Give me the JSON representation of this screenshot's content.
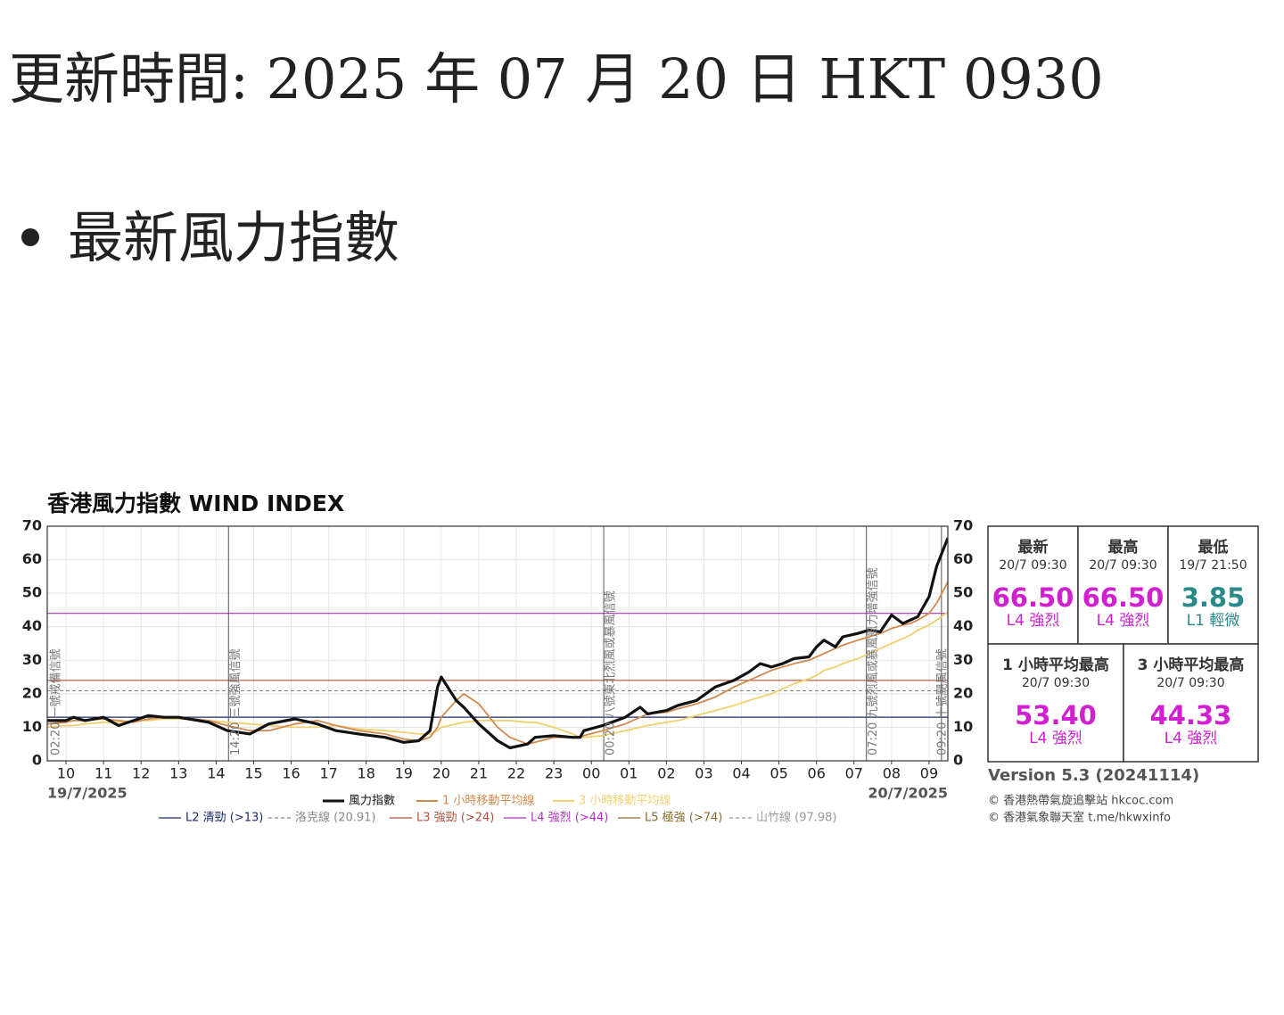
{
  "header": {
    "title": "更新時間: 2025 年 07 月 20 日 HKT 0930",
    "bullet": "最新風力指數"
  },
  "chart_data": {
    "type": "line",
    "title": "香港風力指數  WIND INDEX",
    "x": [
      9.5,
      10,
      10.2,
      10.5,
      11,
      11.4,
      11.8,
      12.2,
      12.6,
      13,
      13.8,
      14.3,
      14.9,
      15.4,
      16.1,
      16.7,
      17.2,
      17.8,
      18.5,
      19,
      19.4,
      19.7,
      19.9,
      20,
      20.4,
      20.6,
      21,
      21.5,
      21.83,
      22.3,
      22.5,
      23,
      23.5,
      23.7,
      23.8,
      24.3,
      24.9,
      25.3,
      25.5,
      26,
      26.3,
      26.8,
      27.3,
      27.8,
      28.2,
      28.5,
      28.8,
      29.1,
      29.4,
      29.8,
      30,
      30.2,
      30.5,
      30.7,
      31.1,
      31.4,
      31.7,
      32,
      32.3,
      32.5,
      32.7,
      33,
      33.2,
      33.5
    ],
    "series": [
      {
        "name": "風力指數",
        "color": "#111111",
        "width": 3.2,
        "values": [
          12,
          12,
          13,
          12,
          13,
          10.5,
          12,
          13.5,
          13,
          13,
          11.5,
          9,
          8,
          11,
          12.5,
          11,
          9,
          8,
          7,
          5.5,
          6,
          9,
          22,
          25,
          18,
          16,
          11,
          6,
          3.85,
          5,
          7,
          7.5,
          7,
          7,
          9,
          10.5,
          13,
          16,
          14,
          15,
          16.5,
          18,
          22,
          24,
          26.5,
          29,
          28,
          29,
          30.5,
          31,
          34,
          36,
          34,
          37,
          38,
          39,
          38.5,
          43.5,
          41,
          42,
          43,
          49,
          58,
          66.5
        ]
      },
      {
        "name": "1 小時移動平均線",
        "color": "#d08a50",
        "width": 1.8,
        "values": [
          11,
          11.5,
          12,
          12,
          12.5,
          12,
          11.5,
          12.5,
          13,
          13,
          12,
          10.5,
          9,
          9,
          11,
          12,
          10.5,
          9,
          8,
          6.5,
          6,
          7,
          10,
          13,
          18,
          20,
          17,
          10,
          7,
          5,
          5.5,
          7,
          7,
          7,
          7.5,
          9,
          11,
          13,
          14,
          14.5,
          15.5,
          17,
          19,
          22,
          24,
          25.5,
          27,
          28,
          29,
          30,
          31,
          32,
          33.5,
          34.5,
          36,
          37,
          38,
          39.5,
          40.5,
          41,
          42,
          44,
          47,
          53.4
        ]
      },
      {
        "name": "3 小時移動平均線",
        "color": "#f0d070",
        "width": 1.8,
        "values": [
          10,
          10.5,
          10.5,
          11,
          11.5,
          11.5,
          12,
          12,
          12.5,
          12.5,
          12,
          11.5,
          11,
          10.5,
          10,
          10,
          10.5,
          9.5,
          9,
          8.5,
          8,
          8,
          9,
          10,
          11,
          11.5,
          12,
          12,
          12,
          11.5,
          11.5,
          10,
          8,
          7,
          7,
          7.5,
          9,
          10,
          10.5,
          11.5,
          12,
          13.5,
          15,
          16.5,
          18,
          19,
          20,
          21.5,
          23,
          24.5,
          25.5,
          27,
          28,
          29,
          30.5,
          32,
          33.5,
          35,
          36.5,
          37.5,
          39,
          40.5,
          42,
          44.33
        ]
      }
    ],
    "reference_lines": [
      {
        "name": "L2 清勁 (>13)",
        "value": 13,
        "color": "#1a2a6c",
        "dashed": false
      },
      {
        "name": "洛克線 (20.91)",
        "value": 20.91,
        "color": "#888888",
        "dashed": true
      },
      {
        "name": "L3 強勁 (>24)",
        "value": 24,
        "color": "#b0503c",
        "dashed": false
      },
      {
        "name": "L4 強烈 (>44)",
        "value": 44,
        "color": "#b030c0",
        "dashed": false
      },
      {
        "name": "L5 極強 (>74)",
        "value": 74,
        "color": "#8a6a2a",
        "dashed": false
      },
      {
        "name": "山竹線 (97.98)",
        "value": 97.98,
        "color": "#999999",
        "dashed": true
      }
    ],
    "annotations": [
      {
        "x": 2.33,
        "text": "02:20 一號戒備信號"
      },
      {
        "x": 14.33,
        "text": "14:20 三號強風信號"
      },
      {
        "x": 24.33,
        "text": "00:20 八號東北烈風或暴風信號"
      },
      {
        "x": 31.33,
        "text": "07:20 九號烈風或暴風風力增強信號"
      },
      {
        "x": 33.33,
        "text": "09:20 十號颶風信號"
      }
    ],
    "xlim": [
      9.5,
      33.5
    ],
    "xticks": [
      {
        "value": 10,
        "label": "10"
      },
      11,
      12,
      13,
      14,
      15,
      16,
      17,
      18,
      19,
      20,
      21,
      22,
      23,
      {
        "value": 24,
        "label": "00"
      },
      {
        "value": 25,
        "label": "01"
      },
      {
        "value": 26,
        "label": "02"
      },
      {
        "value": 27,
        "label": "03"
      },
      {
        "value": 28,
        "label": "04"
      },
      {
        "value": 29,
        "label": "05"
      },
      {
        "value": 30,
        "label": "06"
      },
      {
        "value": 31,
        "label": "07"
      },
      {
        "value": 32,
        "label": "08"
      },
      {
        "value": 33,
        "label": "09"
      }
    ],
    "start_date": "19/7/2025",
    "end_date": "20/7/2025",
    "ylim": [
      0,
      70
    ],
    "yticks": [
      0,
      10,
      20,
      30,
      40,
      50,
      60,
      70
    ],
    "grid": true
  },
  "panel": {
    "cells": [
      {
        "title": "最新",
        "time": "20/7 09:30",
        "value": "66.50",
        "level": "L4 強烈",
        "color": "#d020d0"
      },
      {
        "title": "最高",
        "time": "20/7 09:30",
        "value": "66.50",
        "level": "L4 強烈",
        "color": "#d020d0"
      },
      {
        "title": "最低",
        "time": "19/7 21:50",
        "value": "3.85",
        "level": "L1 輕微",
        "color": "#2a8a8a"
      },
      {
        "title": "1 小時平均最高",
        "time": "20/7 09:30",
        "value": "53.40",
        "level": "L4 強烈",
        "color": "#d020d0"
      },
      {
        "title": "3 小時平均最高",
        "time": "20/7 09:30",
        "value": "44.33",
        "level": "L4 強烈",
        "color": "#d020d0"
      }
    ],
    "version": "Version 5.3 (20241114)",
    "credits": [
      "© 香港熱帶氣旋追擊站 hkcoc.com",
      "© 香港氣象聯天室 t.me/hkwxinfo"
    ]
  }
}
